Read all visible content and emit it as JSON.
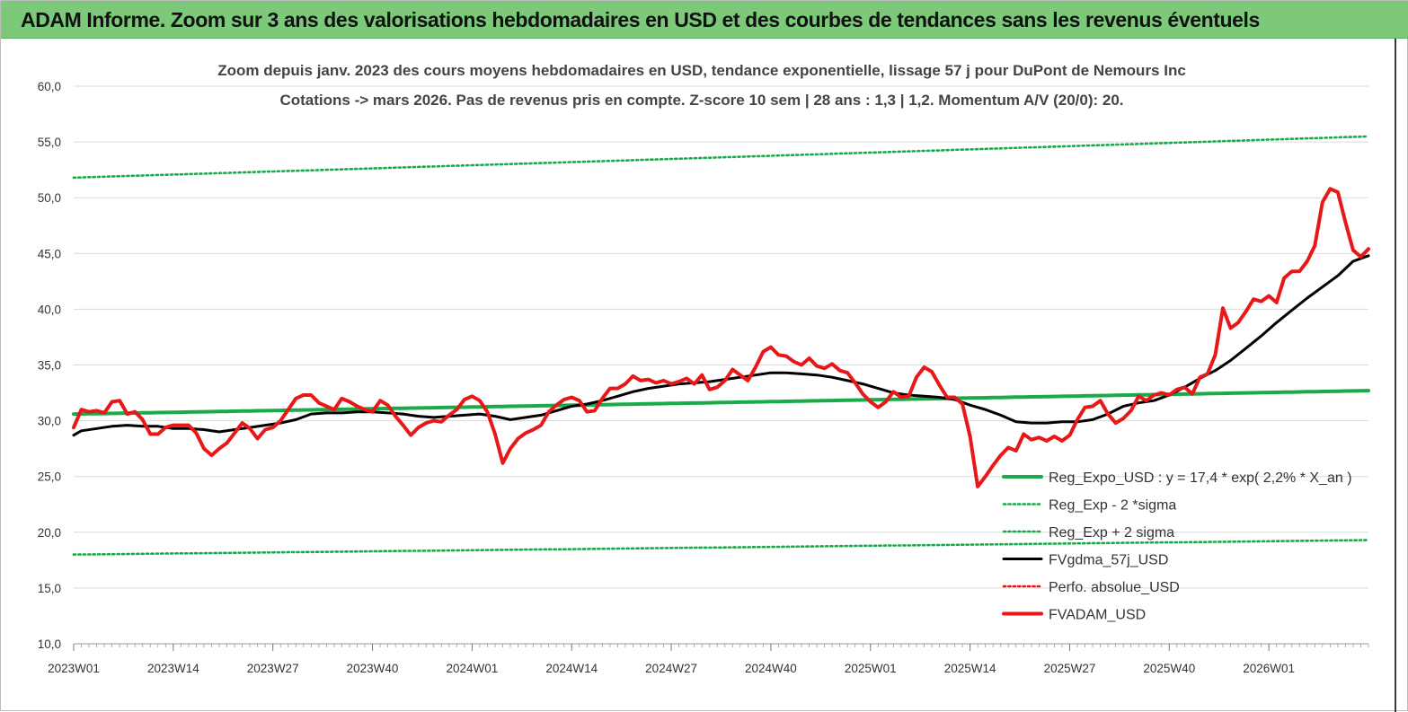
{
  "banner": {
    "title": "ADAM Informe. Zoom sur 3 ans des valorisations hebdomadaires en USD et des courbes de tendances sans les revenus éventuels"
  },
  "colors": {
    "banner": "#7cc97a",
    "regression": "#1aaa4a",
    "sigma": "#1aaa4a",
    "smoothing": "#000000",
    "adam": "#e81818",
    "perfo": "#e81818",
    "grid": "#d9d9d9"
  },
  "chart_data": {
    "type": "line",
    "title": "Zoom depuis janv. 2023 des cours moyens hebdomadaires en USD, tendance exponentielle, lissage 57 j pour DuPont de Nemours Inc",
    "subtitle": "Cotations -> mars 2026. Pas de revenus pris en compte. Z-score 10 sem  | 28 ans : 1,3 | 1,2. Momentum A/V (20/0): 20.",
    "ylim": [
      10,
      60
    ],
    "y_ticks": [
      "10,0",
      "15,0",
      "20,0",
      "25,0",
      "30,0",
      "35,0",
      "40,0",
      "45,0",
      "50,0",
      "55,0",
      "60,0"
    ],
    "x_ticks": [
      "2023W01",
      "2023W14",
      "2023W27",
      "2023W40",
      "2024W01",
      "2024W14",
      "2024W27",
      "2024W40",
      "2025W01",
      "2025W14",
      "2025W27",
      "2025W40",
      "2026W01"
    ],
    "x_range_weeks": [
      0,
      169
    ],
    "grid": "horizontal",
    "legend_position": "bottom-right",
    "legend": [
      {
        "label": "Reg_Expo_USD : y = 17,4 * exp( 2,2% *  X_an )",
        "style": "solid-thick",
        "color": "#1aaa4a"
      },
      {
        "label": "Reg_Exp - 2 *sigma",
        "style": "dotted",
        "color": "#1aaa4a"
      },
      {
        "label": "Reg_Exp + 2 sigma",
        "style": "dotted",
        "color": "#1aaa4a"
      },
      {
        "label": "FVgdma_57j_USD",
        "style": "solid",
        "color": "#000000"
      },
      {
        "label": "Perfo. absolue_USD",
        "style": "dotted",
        "color": "#e81818"
      },
      {
        "label": "FVADAM_USD",
        "style": "solid-thick",
        "color": "#e81818"
      }
    ],
    "series": [
      {
        "name": "Reg_Expo_USD : y = 17,4 * exp( 2,2% *  X_an )",
        "style": "solid-thick",
        "color": "#1aaa4a",
        "x": [
          0,
          169
        ],
        "y": [
          30.6,
          32.7
        ],
        "curve": "exponential"
      },
      {
        "name": "Reg_Exp - 2 *sigma",
        "style": "dotted",
        "color": "#1aaa4a",
        "x": [
          0,
          169
        ],
        "y": [
          18.0,
          19.3
        ],
        "curve": "exponential"
      },
      {
        "name": "Reg_Exp + 2 sigma",
        "style": "dotted",
        "color": "#1aaa4a",
        "x": [
          0,
          169
        ],
        "y": [
          51.8,
          55.5
        ],
        "curve": "exponential"
      },
      {
        "name": "FVgdma_57j_USD",
        "style": "solid",
        "color": "#000000",
        "x": [
          0,
          1,
          3,
          5,
          7,
          9,
          11,
          13,
          15,
          17,
          19,
          21,
          23,
          25,
          27,
          29,
          31,
          33,
          35,
          37,
          39,
          41,
          43,
          45,
          47,
          49,
          51,
          53,
          55,
          57,
          59,
          61,
          63,
          65,
          67,
          69,
          71,
          73,
          75,
          77,
          79,
          81,
          83,
          85,
          87,
          89,
          91,
          93,
          95,
          97,
          99,
          101,
          103,
          105,
          107,
          109,
          111,
          113,
          115,
          117,
          119,
          121,
          123,
          125,
          127,
          129,
          131,
          133,
          135,
          137,
          139,
          141,
          143,
          145,
          147,
          149,
          151,
          153,
          155,
          157,
          159,
          161,
          163,
          165,
          167,
          169
        ],
        "y": [
          28.7,
          29.1,
          29.3,
          29.5,
          29.6,
          29.5,
          29.5,
          29.3,
          29.3,
          29.2,
          29.0,
          29.2,
          29.4,
          29.6,
          29.8,
          30.1,
          30.6,
          30.7,
          30.7,
          30.8,
          30.8,
          30.7,
          30.6,
          30.4,
          30.3,
          30.4,
          30.5,
          30.6,
          30.4,
          30.1,
          30.3,
          30.5,
          30.9,
          31.3,
          31.5,
          31.8,
          32.2,
          32.6,
          32.9,
          33.1,
          33.3,
          33.4,
          33.5,
          33.7,
          33.9,
          34.1,
          34.3,
          34.3,
          34.2,
          34.1,
          33.9,
          33.6,
          33.3,
          32.9,
          32.5,
          32.3,
          32.2,
          32.1,
          31.9,
          31.4,
          31.0,
          30.5,
          29.9,
          29.8,
          29.8,
          29.9,
          29.9,
          30.1,
          30.6,
          31.3,
          31.6,
          31.8,
          32.3,
          33.0,
          33.8,
          34.5,
          35.4,
          36.5,
          37.6,
          38.8,
          39.9,
          41.0,
          42.0,
          43.0,
          44.3,
          44.8
        ],
        "x_tail": [
          167.5,
          169
        ],
        "y_tail": [
          44.6,
          44.8
        ]
      },
      {
        "name": "Perfo. absolue_USD",
        "style": "dotted",
        "color": "#e81818",
        "x": [],
        "y": []
      },
      {
        "name": "FVADAM_USD",
        "style": "solid-thick",
        "color": "#e81818",
        "x": [
          0,
          1,
          2,
          3,
          4,
          5,
          6,
          7,
          8,
          9,
          10,
          11,
          12,
          13,
          14,
          15,
          16,
          17,
          18,
          19,
          20,
          21,
          22,
          23,
          24,
          25,
          26,
          27,
          28,
          29,
          30,
          31,
          32,
          33,
          34,
          35,
          36,
          37,
          38,
          39,
          40,
          41,
          42,
          43,
          44,
          45,
          46,
          47,
          48,
          49,
          50,
          51,
          52,
          53,
          54,
          55,
          56,
          57,
          58,
          59,
          60,
          61,
          62,
          63,
          64,
          65,
          66,
          67,
          68,
          69,
          70,
          71,
          72,
          73,
          74,
          75,
          76,
          77,
          78,
          79,
          80,
          81,
          82,
          83,
          84,
          85,
          86,
          87,
          88,
          89,
          90,
          91,
          92,
          93,
          94,
          95,
          96,
          97,
          98,
          99,
          100,
          101,
          102,
          103,
          104,
          105,
          106,
          107,
          108,
          109,
          110,
          111,
          112,
          113,
          114,
          115,
          116,
          117,
          118,
          119,
          120,
          121,
          122,
          123,
          124,
          125,
          126,
          127,
          128,
          129,
          130,
          131,
          132,
          133,
          134,
          135,
          136,
          137,
          138,
          139,
          140,
          141,
          142,
          143,
          144,
          145,
          146,
          147,
          148,
          149,
          150,
          151,
          152,
          153,
          154,
          155,
          156,
          157,
          158,
          159,
          160,
          161,
          162,
          163,
          164,
          165,
          166,
          167,
          168,
          169
        ],
        "y": [
          29.4,
          31.0,
          30.8,
          30.9,
          30.7,
          31.7,
          31.8,
          30.6,
          30.8,
          30.1,
          28.8,
          28.8,
          29.4,
          29.6,
          29.6,
          29.6,
          28.9,
          27.5,
          26.9,
          27.5,
          28.0,
          28.9,
          29.8,
          29.3,
          28.4,
          29.2,
          29.4,
          30.0,
          31.0,
          32.0,
          32.3,
          32.3,
          31.6,
          31.3,
          31.0,
          32.0,
          31.7,
          31.3,
          31.0,
          30.8,
          31.8,
          31.4,
          30.4,
          29.6,
          28.7,
          29.4,
          29.8,
          30.0,
          29.9,
          30.5,
          31.0,
          31.9,
          32.2,
          31.8,
          30.8,
          28.8,
          26.2,
          27.5,
          28.4,
          28.9,
          29.2,
          29.6,
          30.8,
          31.4,
          31.9,
          32.1,
          31.8,
          30.8,
          30.9,
          32.0,
          32.9,
          32.9,
          33.3,
          34.0,
          33.6,
          33.7,
          33.4,
          33.6,
          33.3,
          33.5,
          33.8,
          33.3,
          34.1,
          32.8,
          33.0,
          33.6,
          34.6,
          34.1,
          33.6,
          34.8,
          36.2,
          36.6,
          35.9,
          35.8,
          35.3,
          35.0,
          35.6,
          34.9,
          34.7,
          35.1,
          34.5,
          34.3,
          33.4,
          32.4,
          31.7,
          31.2,
          31.7,
          32.6,
          32.1,
          32.2,
          33.9,
          34.8,
          34.4,
          33.2,
          32.1,
          32.1,
          31.5,
          28.6,
          24.1,
          25.0,
          26.0,
          26.9,
          27.6,
          27.3,
          28.8,
          28.3,
          28.5,
          28.2,
          28.6,
          28.2,
          28.7,
          30.1,
          31.2,
          31.3,
          31.8,
          30.6,
          29.8,
          30.2,
          30.9,
          32.2,
          31.8,
          32.3,
          32.5,
          32.3,
          32.8,
          33.0,
          32.4,
          33.9,
          34.2,
          35.9,
          40.1,
          38.3,
          38.8,
          39.8,
          40.9,
          40.7,
          41.2,
          40.6,
          42.8,
          43.4,
          43.4,
          44.3,
          45.7,
          49.6,
          50.8,
          50.5,
          47.8,
          45.3,
          44.7,
          45.4
        ]
      }
    ]
  }
}
